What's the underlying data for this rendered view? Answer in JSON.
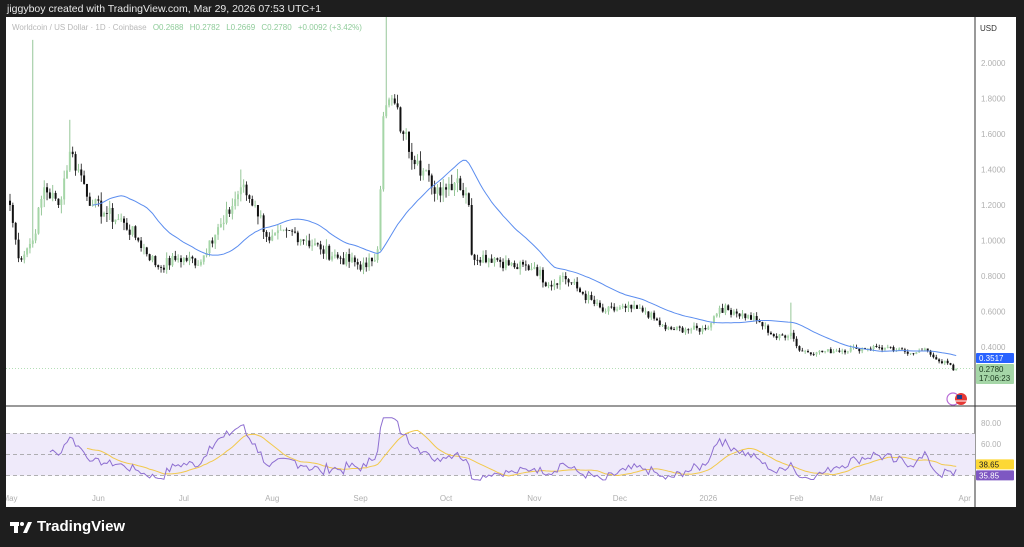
{
  "caption": "jiggyboy created with TradingView.com, Mar 29, 2026 07:53 UTC+1",
  "legend": {
    "symbol": "Worldcoin / US Dollar · 1D · Coinbase",
    "open": "O0.2688",
    "high": "H0.2782",
    "low": "L0.2669",
    "close": "C0.2780",
    "change": "+0.0092 (+3.42%)"
  },
  "price_axis": {
    "currency": "USD",
    "ticks": [
      "2.0000",
      "1.8000",
      "1.6000",
      "1.4000",
      "1.2000",
      "1.0000",
      "0.8000",
      "0.6000",
      "0.4000"
    ]
  },
  "rsi_axis": {
    "ticks": [
      "80.00",
      "60.00"
    ]
  },
  "time_axis": {
    "labels": [
      "May",
      "Jun",
      "Jul",
      "Aug",
      "Sep",
      "Oct",
      "Nov",
      "Dec",
      "2026",
      "Feb",
      "Mar",
      "Apr"
    ]
  },
  "tags": {
    "ma_value": "0.3517",
    "last_price": "0.2780",
    "countdown": "17:06:23",
    "rsi_ma": "38.65",
    "rsi": "35.85"
  },
  "colors": {
    "up": "#a5d6a7",
    "down": "#111111",
    "ma": "#5b8def",
    "rsi": "#8e6fd1",
    "rsi_ma": "#f2c94c",
    "ma_tag": "#2962ff",
    "price_tag": "#a5d6a7",
    "rsi_tag": "#7e57c2",
    "rsi_ma_tag": "#fdd835"
  },
  "footer": {
    "brand": "TradingView"
  },
  "chart_data": {
    "type": "candlestick",
    "symbol": "WLD/USD",
    "interval": "1D",
    "ylim": [
      0.15,
      2.2
    ],
    "close_keypoints": [
      [
        "2025-05-01",
        1.2
      ],
      [
        "2025-05-04",
        0.9
      ],
      [
        "2025-05-09",
        1.0
      ],
      [
        "2025-05-13",
        1.3
      ],
      [
        "2025-05-18",
        1.2
      ],
      [
        "2025-05-22",
        1.5
      ],
      [
        "2025-05-25",
        1.4
      ],
      [
        "2025-05-30",
        1.2
      ],
      [
        "2025-06-04",
        1.15
      ],
      [
        "2025-06-10",
        1.1
      ],
      [
        "2025-06-15",
        1.0
      ],
      [
        "2025-06-22",
        0.85
      ],
      [
        "2025-06-29",
        0.9
      ],
      [
        "2025-07-07",
        0.88
      ],
      [
        "2025-07-10",
        1.0
      ],
      [
        "2025-07-15",
        1.1
      ],
      [
        "2025-07-21",
        1.3
      ],
      [
        "2025-07-26",
        1.2
      ],
      [
        "2025-07-31",
        1.0
      ],
      [
        "2025-08-08",
        1.05
      ],
      [
        "2025-08-13",
        1.0
      ],
      [
        "2025-08-18",
        0.95
      ],
      [
        "2025-08-25",
        0.9
      ],
      [
        "2025-09-03",
        0.85
      ],
      [
        "2025-09-07",
        0.95
      ],
      [
        "2025-09-09",
        1.7
      ],
      [
        "2025-09-12",
        1.8
      ],
      [
        "2025-09-16",
        1.6
      ],
      [
        "2025-09-21",
        1.45
      ],
      [
        "2025-09-26",
        1.3
      ],
      [
        "2025-09-30",
        1.3
      ],
      [
        "2025-10-05",
        1.35
      ],
      [
        "2025-10-09",
        1.2
      ],
      [
        "2025-10-10",
        0.92
      ],
      [
        "2025-10-18",
        0.9
      ],
      [
        "2025-10-25",
        0.85
      ],
      [
        "2025-11-01",
        0.85
      ],
      [
        "2025-11-06",
        0.75
      ],
      [
        "2025-11-11",
        0.8
      ],
      [
        "2025-11-18",
        0.7
      ],
      [
        "2025-11-25",
        0.6
      ],
      [
        "2025-12-03",
        0.62
      ],
      [
        "2025-12-10",
        0.6
      ],
      [
        "2025-12-17",
        0.5
      ],
      [
        "2025-12-24",
        0.5
      ],
      [
        "2025-12-31",
        0.5
      ],
      [
        "2026-01-05",
        0.62
      ],
      [
        "2026-01-10",
        0.6
      ],
      [
        "2026-01-18",
        0.55
      ],
      [
        "2026-01-25",
        0.45
      ],
      [
        "2026-01-30",
        0.48
      ],
      [
        "2026-02-02",
        0.38
      ],
      [
        "2026-02-08",
        0.37
      ],
      [
        "2026-02-15",
        0.38
      ],
      [
        "2026-02-22",
        0.39
      ],
      [
        "2026-03-01",
        0.4
      ],
      [
        "2026-03-08",
        0.38
      ],
      [
        "2026-03-15",
        0.37
      ],
      [
        "2026-03-19",
        0.38
      ],
      [
        "2026-03-22",
        0.33
      ],
      [
        "2026-03-27",
        0.3
      ],
      [
        "2026-03-28",
        0.2688
      ],
      [
        "2026-03-29",
        0.278
      ]
    ],
    "wick_highs": [
      [
        "2025-05-09",
        2.13
      ],
      [
        "2025-05-22",
        1.68
      ],
      [
        "2025-07-21",
        1.4
      ],
      [
        "2025-09-10",
        2.3
      ],
      [
        "2026-01-30",
        0.65
      ]
    ],
    "last_candle": {
      "date": "2026-03-29",
      "open": 0.2688,
      "high": 0.2782,
      "low": 0.2669,
      "close": 0.278
    },
    "moving_average_last": 0.3517,
    "rsi": {
      "last": 35.85,
      "ma_last": 38.65,
      "bands": [
        30,
        70
      ],
      "mid": 50
    }
  }
}
